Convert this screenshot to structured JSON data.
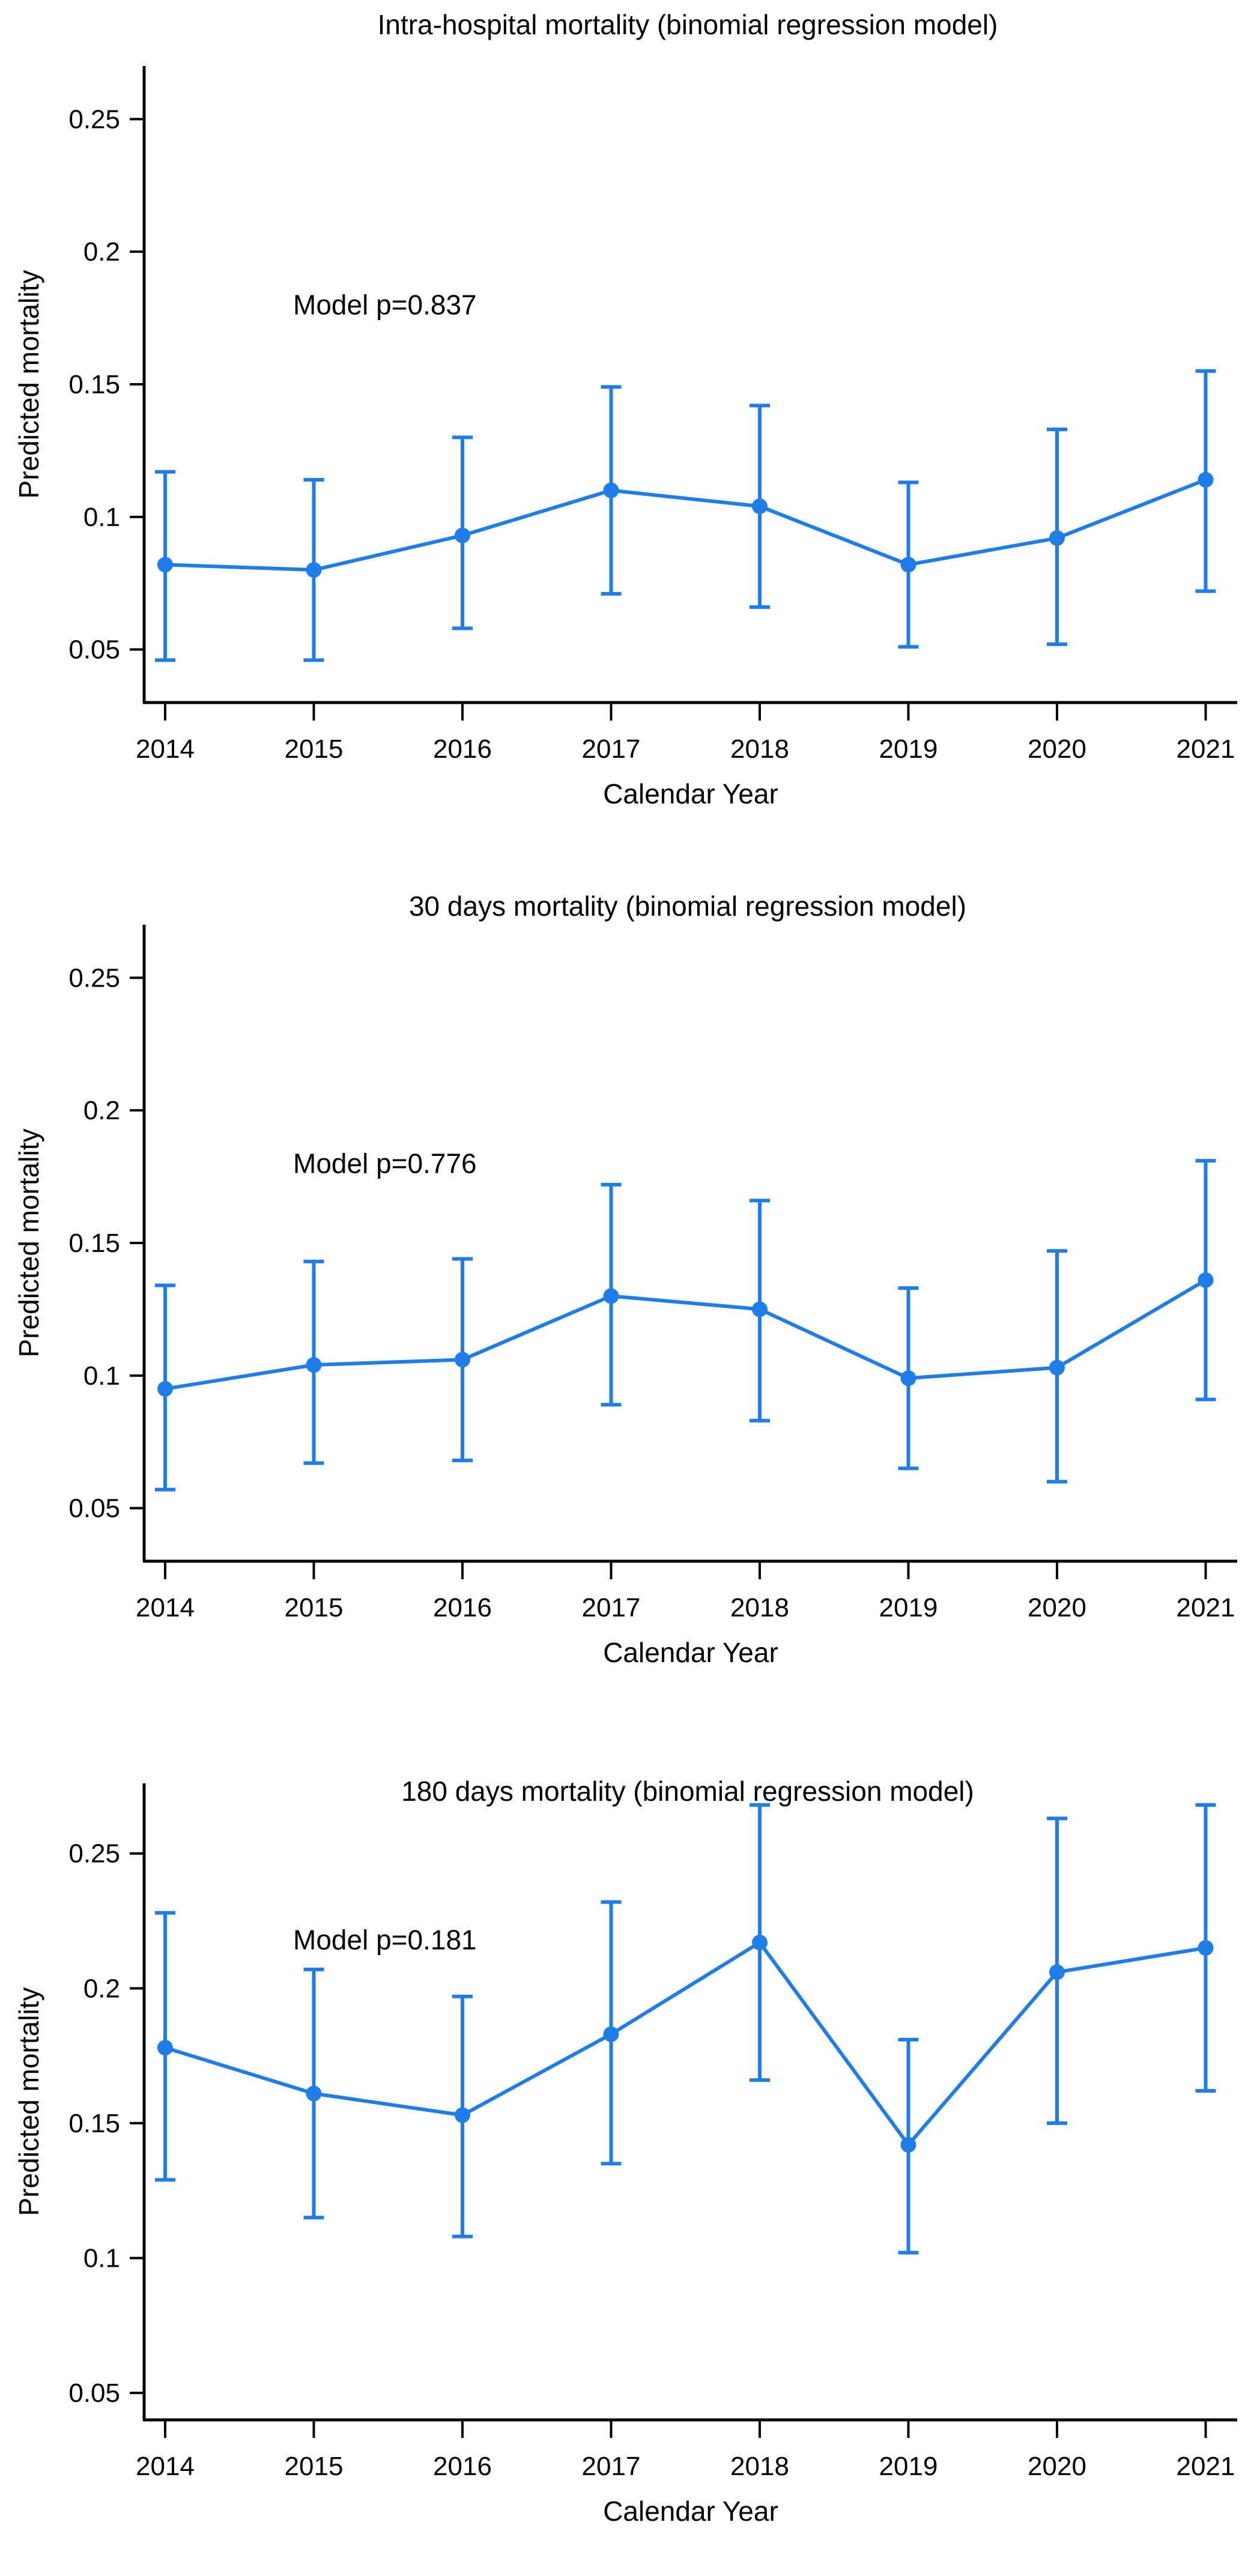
{
  "figure": {
    "accent_color": "#1E7DE8",
    "axis_color": "#000000",
    "x_axis_label": "Calendar Year",
    "y_axis_label": "Predicted mortality"
  },
  "chart_data": [
    {
      "type": "line",
      "title": "Intra-hospital mortality (binomial regression model)",
      "annotation": {
        "text": "Model p=0.837",
        "y_value": 0.18
      },
      "xlabel": "Calendar Year",
      "ylabel": "Predicted mortality",
      "categories": [
        "2014",
        "2015",
        "2016",
        "2017",
        "2018",
        "2019",
        "2020",
        "2021"
      ],
      "yticks": [
        0.05,
        0.1,
        0.15,
        0.2,
        0.25
      ],
      "ytick_labels": [
        "0.05",
        "0.1",
        "0.15",
        "0.2",
        "0.25"
      ],
      "ylim": [
        0.03,
        0.27
      ],
      "grid": false,
      "legend": "none",
      "series": [
        {
          "name": "Predicted mortality with 95% CI",
          "values": [
            0.082,
            0.08,
            0.093,
            0.11,
            0.104,
            0.082,
            0.092,
            0.114
          ],
          "ci_low": [
            0.046,
            0.046,
            0.058,
            0.071,
            0.066,
            0.051,
            0.052,
            0.072
          ],
          "ci_high": [
            0.117,
            0.114,
            0.13,
            0.149,
            0.142,
            0.113,
            0.133,
            0.155
          ]
        }
      ]
    },
    {
      "type": "line",
      "title": "30 days mortality (binomial regression model)",
      "annotation": {
        "text": "Model p=0.776",
        "y_value": 0.18
      },
      "xlabel": "Calendar Year",
      "ylabel": "Predicted mortality",
      "categories": [
        "2014",
        "2015",
        "2016",
        "2017",
        "2018",
        "2019",
        "2020",
        "2021"
      ],
      "yticks": [
        0.05,
        0.1,
        0.15,
        0.2,
        0.25
      ],
      "ytick_labels": [
        "0.05",
        "0.1",
        "0.15",
        "0.2",
        "0.25"
      ],
      "ylim": [
        0.03,
        0.27
      ],
      "grid": false,
      "legend": "none",
      "series": [
        {
          "name": "Predicted mortality with 95% CI",
          "values": [
            0.095,
            0.104,
            0.106,
            0.13,
            0.125,
            0.099,
            0.103,
            0.136
          ],
          "ci_low": [
            0.057,
            0.067,
            0.068,
            0.089,
            0.083,
            0.065,
            0.06,
            0.091
          ],
          "ci_high": [
            0.134,
            0.143,
            0.144,
            0.172,
            0.166,
            0.133,
            0.147,
            0.181
          ]
        }
      ]
    },
    {
      "type": "line",
      "title": "180 days mortality (binomial regression model)",
      "annotation": {
        "text": "Model p=0.181",
        "y_value": 0.218
      },
      "xlabel": "Calendar Year",
      "ylabel": "Predicted mortality",
      "categories": [
        "2014",
        "2015",
        "2016",
        "2017",
        "2018",
        "2019",
        "2020",
        "2021"
      ],
      "yticks": [
        0.05,
        0.1,
        0.15,
        0.2,
        0.25
      ],
      "ytick_labels": [
        "0.05",
        "0.1",
        "0.15",
        "0.2",
        "0.25"
      ],
      "ylim": [
        0.04,
        0.276
      ],
      "grid": false,
      "legend": "none",
      "series": [
        {
          "name": "Predicted mortality with 95% CI",
          "values": [
            0.178,
            0.161,
            0.153,
            0.183,
            0.217,
            0.142,
            0.206,
            0.215
          ],
          "ci_low": [
            0.129,
            0.115,
            0.108,
            0.135,
            0.166,
            0.102,
            0.15,
            0.162
          ],
          "ci_high": [
            0.228,
            0.207,
            0.197,
            0.232,
            0.268,
            0.181,
            0.263,
            0.268
          ]
        }
      ]
    }
  ]
}
